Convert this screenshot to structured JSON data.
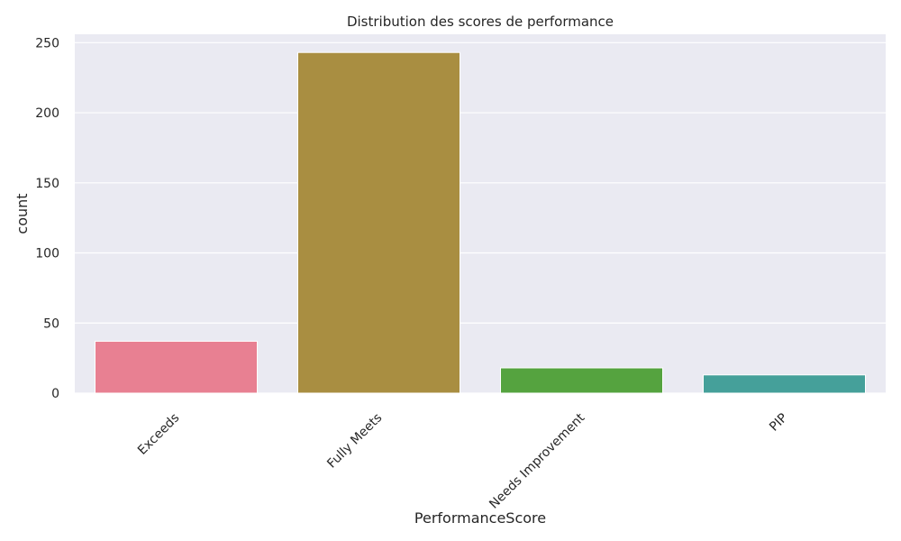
{
  "chart_data": {
    "type": "bar",
    "title": "Distribution des scores de performance",
    "xlabel": "PerformanceScore",
    "ylabel": "count",
    "categories": [
      "Exceeds",
      "Fully Meets",
      "Needs Improvement",
      "PIP"
    ],
    "values": [
      37,
      243,
      18,
      13
    ],
    "colors": [
      "#e88092",
      "#a98e41",
      "#55a33f",
      "#45a09a"
    ],
    "yticks": [
      0,
      50,
      100,
      150,
      200,
      250
    ],
    "ylim": [
      0,
      256
    ],
    "grid": true,
    "background": "#eaeaf2",
    "gridcolor": "#ffffff"
  }
}
